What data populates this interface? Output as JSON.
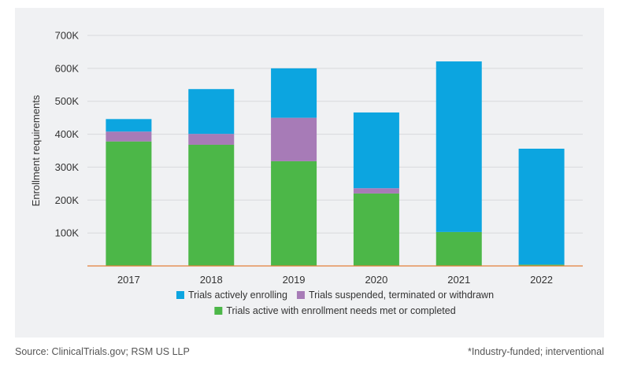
{
  "chart_data": {
    "type": "bar",
    "stacked": true,
    "title": "",
    "xlabel": "",
    "ylabel": "Enrollment requirements",
    "ylim": [
      0,
      700000
    ],
    "y_ticks": [
      {
        "value": 100000,
        "label": "100K"
      },
      {
        "value": 200000,
        "label": "200K"
      },
      {
        "value": 300000,
        "label": "300K"
      },
      {
        "value": 400000,
        "label": "400K"
      },
      {
        "value": 500000,
        "label": "500K"
      },
      {
        "value": 600000,
        "label": "600K"
      },
      {
        "value": 700000,
        "label": "700K"
      }
    ],
    "grid": true,
    "legend_position": "bottom",
    "categories": [
      "2017",
      "2018",
      "2019",
      "2020",
      "2021",
      "2022"
    ],
    "series": [
      {
        "name": "Trials active with enrollment needs met or completed",
        "color": "#4cb748",
        "values": [
          378000,
          368000,
          318000,
          220000,
          103000,
          4000
        ]
      },
      {
        "name": "Trials suspended, terminated or withdrawn",
        "color": "#a77bb7",
        "values": [
          30000,
          33000,
          132000,
          16000,
          0,
          0
        ]
      },
      {
        "name": "Trials actively enrolling",
        "color": "#0ca5e0",
        "values": [
          38000,
          136000,
          150000,
          230000,
          518000,
          352000
        ]
      }
    ],
    "legend": [
      {
        "series_index": 2,
        "row": 0
      },
      {
        "series_index": 1,
        "row": 0
      },
      {
        "series_index": 0,
        "row": 1
      }
    ],
    "axis_color": "#e2813a",
    "grid_color": "#d8d9dc"
  },
  "footer": {
    "source": "Source: ClinicalTrials.gov; RSM US LLP",
    "note": "*Industry-funded; interventional"
  }
}
